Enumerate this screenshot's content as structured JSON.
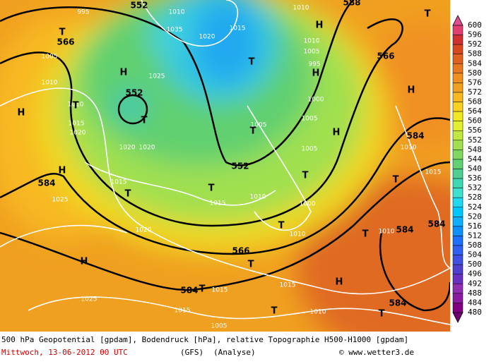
{
  "map": {
    "geopotential_labels": [
      "552",
      "566",
      "552",
      "552",
      "584",
      "566",
      "584",
      "588",
      "566",
      "584",
      "584",
      "584",
      "584"
    ],
    "pressure_labels": [
      "995",
      "1010",
      "1035",
      "1020",
      "1015",
      "1005",
      "1010",
      "1025",
      "1010",
      "1015",
      "1020",
      "1020",
      "1020",
      "1005",
      "1005",
      "1005",
      "1015",
      "1025",
      "1015",
      "1010",
      "1000",
      "1020",
      "1010",
      "1010",
      "1010",
      "1015",
      "1015",
      "1015",
      "1015",
      "1010",
      "1025",
      "1005",
      "1010",
      "1010",
      "1005",
      "995",
      "1000"
    ],
    "highs": [
      "H",
      "H",
      "H",
      "H",
      "H",
      "H",
      "H",
      "H",
      "H"
    ],
    "lows": [
      "T",
      "T",
      "T",
      "T",
      "T",
      "T",
      "T",
      "T",
      "T",
      "T",
      "T",
      "T",
      "T",
      "T",
      "T",
      "T"
    ]
  },
  "colorbar": {
    "labels": [
      "600",
      "596",
      "592",
      "588",
      "584",
      "580",
      "576",
      "572",
      "568",
      "564",
      "560",
      "556",
      "552",
      "548",
      "544",
      "540",
      "536",
      "532",
      "528",
      "524",
      "520",
      "516",
      "512",
      "508",
      "504",
      "500",
      "496",
      "492",
      "488",
      "484",
      "480"
    ],
    "colors": [
      "#e04070",
      "#d03030",
      "#d84820",
      "#e06020",
      "#e87820",
      "#f09020",
      "#f0a020",
      "#f8b820",
      "#f8d020",
      "#f0e820",
      "#e0f030",
      "#c0e840",
      "#a0e050",
      "#80d860",
      "#60d070",
      "#50d090",
      "#40d8b0",
      "#40e0d0",
      "#20d8f0",
      "#00c8ff",
      "#10b0ff",
      "#1090ff",
      "#2070ff",
      "#3060f0",
      "#4050e0",
      "#5040d0",
      "#6a30c0",
      "#9030b0",
      "#8a1aa0",
      "#800080"
    ]
  },
  "footer": {
    "description": "500 hPa Geopotential [gpdam], Bodendruck [hPa], relative Topographie H500-H1000 [gpdam]",
    "date": "Mittwoch, 13-06-2012  00 UTC",
    "model": "(GFS)",
    "run": "(Analyse)",
    "copyright": "© www.wetter3.de"
  }
}
